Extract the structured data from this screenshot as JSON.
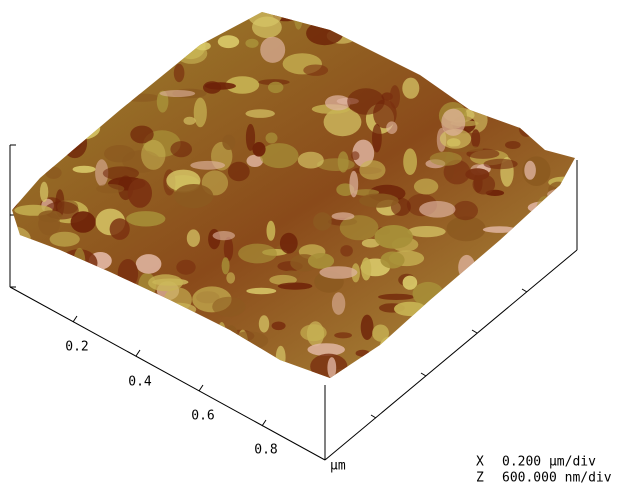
{
  "x_axis": {
    "ticks": [
      "0.2",
      "0.4",
      "0.6",
      "0.8"
    ],
    "unit": "µm"
  },
  "scale": [
    {
      "axis": "X",
      "value": "0.200 µm/div"
    },
    {
      "axis": "Z",
      "value": "600.000 nm/div"
    }
  ]
}
